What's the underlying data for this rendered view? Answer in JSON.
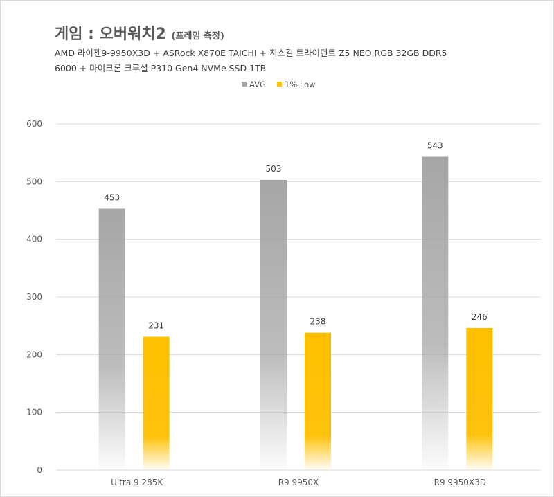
{
  "chart_data": {
    "type": "bar",
    "title": "게임 : 오버워치2",
    "title_note": "(프레임 측정)",
    "subtitle_lines": [
      "AMD 라이젠9-9950X3D + ASRock X870E TAICHI + 지스킬 트라이던트 Z5 NEO RGB 32GB DDR5",
      "6000 + 마이크론 크루셜 P310 Gen4 NVMe SSD 1TB"
    ],
    "categories": [
      "Ultra 9 285K",
      "R9 9950X",
      "R9 9950X3D"
    ],
    "series": [
      {
        "name": "AVG",
        "values": [
          453,
          503,
          543
        ],
        "color": "#a6a6a6"
      },
      {
        "name": "1% Low",
        "values": [
          231,
          238,
          246
        ],
        "color": "#ffc000"
      }
    ],
    "yticks": [
      0,
      100,
      200,
      300,
      400,
      500,
      600
    ],
    "ylim": [
      0,
      600
    ],
    "grid": true,
    "legend": "top-center"
  }
}
